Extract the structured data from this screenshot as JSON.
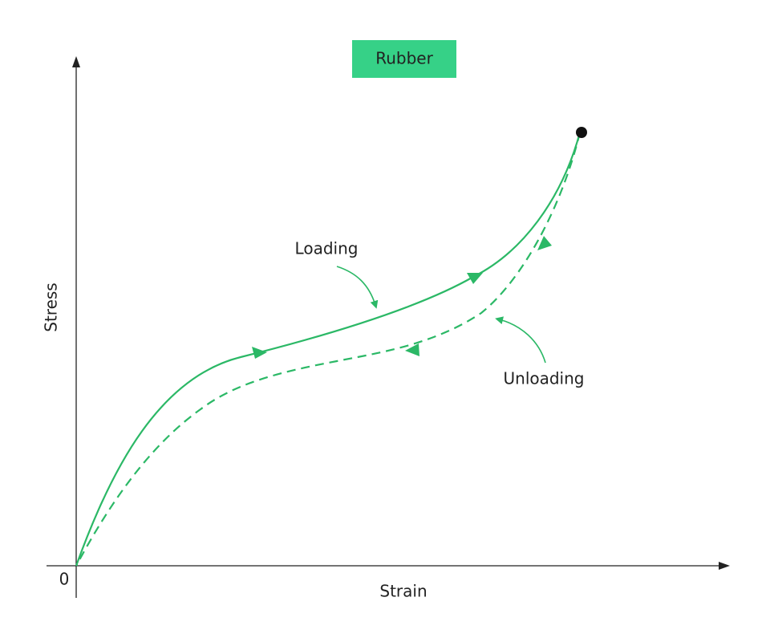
{
  "title": "Rubber",
  "axes": {
    "y_label": "Stress",
    "x_label": "Strain",
    "origin": "0"
  },
  "annotations": {
    "loading": "Loading",
    "unloading": "Unloading"
  }
}
